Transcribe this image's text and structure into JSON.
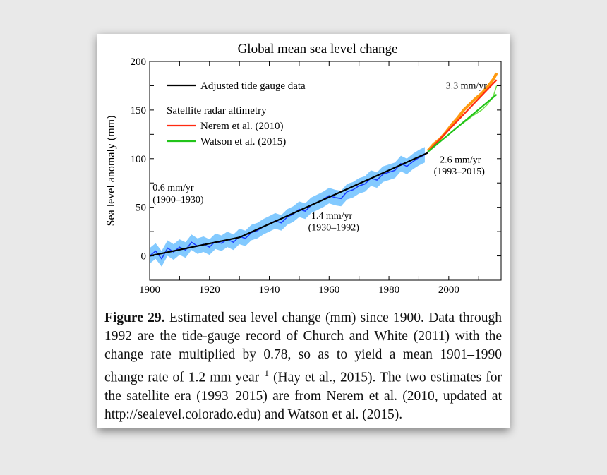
{
  "chart_data": {
    "type": "line",
    "title": "Global mean sea level change",
    "xlabel": "",
    "ylabel": "Sea level anomaly (mm)",
    "xlim": [
      1900,
      2017.5
    ],
    "ylim": [
      -25,
      200
    ],
    "xticks": [
      1900,
      1920,
      1940,
      1960,
      1980,
      2000
    ],
    "yticks": [
      0,
      50,
      100,
      150,
      200
    ],
    "grid": false,
    "legend": {
      "placement": "top-left",
      "entries": [
        "Adjusted tide gauge data",
        "Satellite radar altimetry",
        "Nerem et al. (2010)",
        "Watson et al. (2015)"
      ]
    },
    "series": [
      {
        "name": "Adjusted tide gauge data",
        "color": "#000000",
        "x": [
          1900,
          1930,
          1993
        ],
        "y": [
          0,
          19,
          106
        ]
      },
      {
        "name": "Nerem et al. (2010)",
        "color": "#ff2a10",
        "x": [
          1993,
          2016
        ],
        "y": [
          107,
          181
        ]
      },
      {
        "name": "Watson et al. (2015)",
        "color": "#22c41a",
        "x": [
          1993,
          2016
        ],
        "y": [
          107,
          166
        ]
      }
    ],
    "tide_gauge_raw": {
      "color": "#1a3cff",
      "band_color": "#5ab8ff",
      "band_halfwidth": 8,
      "x": [
        1900,
        1902,
        1904,
        1906,
        1908,
        1910,
        1912,
        1914,
        1916,
        1918,
        1920,
        1922,
        1924,
        1926,
        1928,
        1930,
        1932,
        1934,
        1936,
        1938,
        1940,
        1942,
        1944,
        1946,
        1948,
        1950,
        1952,
        1954,
        1956,
        1958,
        1960,
        1962,
        1964,
        1966,
        1968,
        1970,
        1972,
        1974,
        1976,
        1978,
        1980,
        1982,
        1984,
        1986,
        1988,
        1990,
        1992
      ],
      "y": [
        0,
        5,
        -3,
        8,
        4,
        9,
        6,
        14,
        10,
        12,
        9,
        15,
        13,
        17,
        14,
        20,
        18,
        24,
        26,
        30,
        33,
        36,
        34,
        40,
        43,
        48,
        46,
        52,
        55,
        58,
        62,
        60,
        59,
        66,
        68,
        72,
        74,
        80,
        78,
        84,
        86,
        88,
        95,
        92,
        97,
        101,
        104
      ]
    },
    "nerem_raw": {
      "color": "#ff9a10",
      "x": [
        1993,
        1995,
        1997,
        1999,
        2001,
        2003,
        2005,
        2007,
        2009,
        2011,
        2013,
        2015,
        2016
      ],
      "y": [
        108,
        115,
        120,
        127,
        135,
        142,
        150,
        156,
        162,
        167,
        174,
        182,
        188
      ]
    },
    "watson_raw": {
      "color": "#6fe04a",
      "x": [
        1993,
        1996,
        1999,
        2002,
        2005,
        2008,
        2011,
        2013,
        2015,
        2016
      ],
      "y": [
        107,
        116,
        122,
        130,
        137,
        144,
        150,
        156,
        165,
        175
      ]
    },
    "annotations": [
      {
        "text": "0.6 mm/yr",
        "x": 1901,
        "y": 67
      },
      {
        "text": "(1900–1930)",
        "x": 1901,
        "y": 55
      },
      {
        "text": "1.4 mm/yr",
        "x": 1954,
        "y": 38
      },
      {
        "text": "(1930–1992)",
        "x": 1953,
        "y": 26
      },
      {
        "text": "3.3 mm/yr",
        "x": 1999,
        "y": 172
      },
      {
        "text": "2.6 mm/yr",
        "x": 1997,
        "y": 96
      },
      {
        "text": "(1993–2015)",
        "x": 1995,
        "y": 84
      }
    ]
  },
  "caption": {
    "label": "Figure 29.",
    "text1": " Estimated sea level change (mm) since 1900. Data through 1992 are the tide-gauge record of Church and White (2011) with the change rate multiplied by 0.78, so as to yield a mean 1901–1990 change rate of 1.2 mm year",
    "sup": "−1",
    "text2": " (Hay et al., 2015). The two estimates for the satellite era (1993–2015) are from Nerem et al. (2010, updated at http://sealevel.colorado.edu) and Watson et al. (2015)."
  }
}
